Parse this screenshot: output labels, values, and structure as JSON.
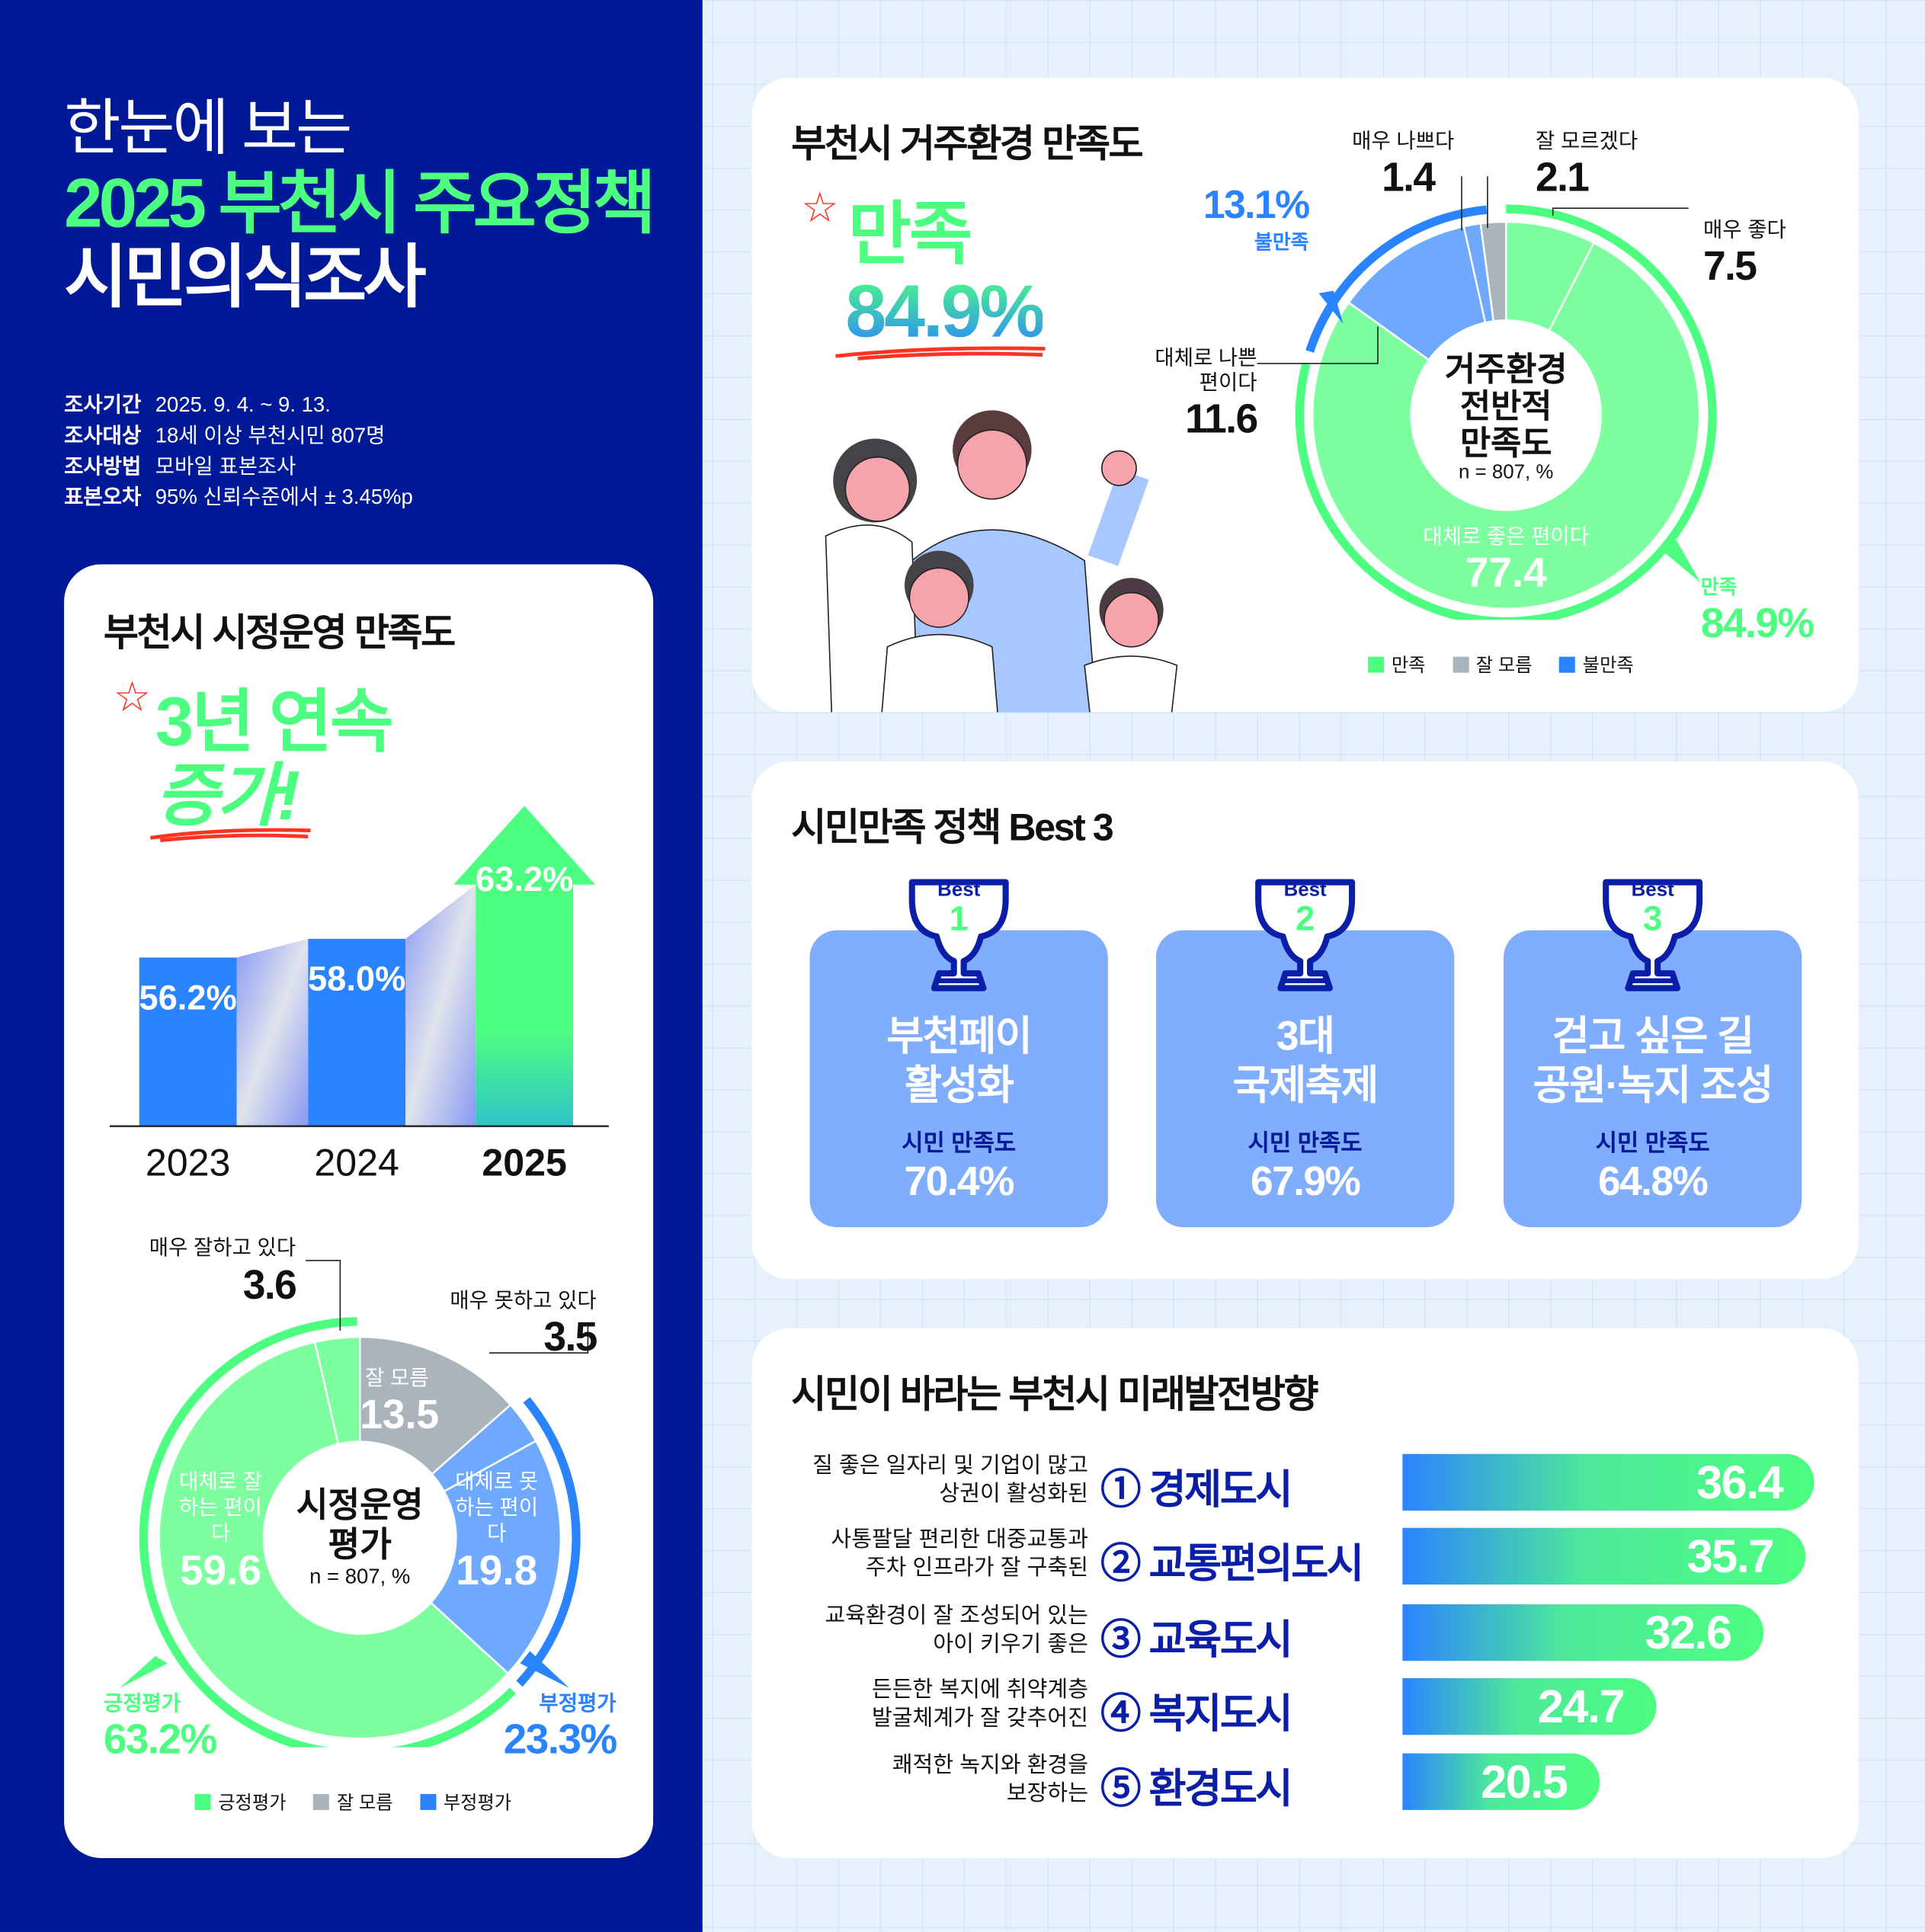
{
  "header": {
    "line1": "한눈에 보는",
    "line2": "2025 부천시 주요정책",
    "line3": "시민의식조사"
  },
  "survey_info": [
    {
      "label": "조사기간",
      "value": "2025. 9. 4. ~ 9. 13."
    },
    {
      "label": "조사대상",
      "value": "18세 이상 부천시민 807명"
    },
    {
      "label": "조사방법",
      "value": "모바일 표본조사"
    },
    {
      "label": "표본오차",
      "value": "95% 신뢰수준에서 ± 3.45%p"
    }
  ],
  "colors": {
    "navy": "#001996",
    "green": "#4dff80",
    "light_green": "#7eff9f",
    "blue": "#2b84ff",
    "light_blue": "#6ea8ff",
    "gray": "#a9b5bb"
  },
  "city_admin": {
    "title": "부천시 시정운영 만족도",
    "headline1": "3년 연속",
    "headline2": "증가!",
    "donut_center": "시정운영",
    "donut_center2": "평가",
    "n_label": "n = 807, %",
    "positive": {
      "label": "긍정평가",
      "value": "63.2%"
    },
    "negative": {
      "label": "부정평가",
      "value": "23.3%"
    },
    "legend": [
      "긍정평가",
      "잘 모름",
      "부정평가"
    ]
  },
  "residential": {
    "title": "부천시 거주환경 만족도",
    "headline1": "만족",
    "headline2": "84.9%",
    "donut_center": [
      "거주환경",
      "전반적",
      "만족도"
    ],
    "n_label": "n = 807, %",
    "satisfied": {
      "label": "만족",
      "value": "84.9%"
    },
    "dissatisfied": {
      "label": "불만족",
      "value": "13.1%"
    },
    "legend": [
      "만족",
      "잘 모름",
      "불만족"
    ]
  },
  "best3": {
    "title": "시민만족 정책 Best 3",
    "items": [
      {
        "badge": "Best",
        "rank": "1",
        "name1": "부천페이",
        "name2": "활성화",
        "sat_label": "시민 만족도",
        "value": "70.4%"
      },
      {
        "badge": "Best",
        "rank": "2",
        "name1": "3대",
        "name2": "국제축제",
        "sat_label": "시민 만족도",
        "value": "67.9%"
      },
      {
        "badge": "Best",
        "rank": "3",
        "name1": "걷고 싶은 길",
        "name2": "공원·녹지 조성",
        "sat_label": "시민 만족도",
        "value": "64.8%"
      }
    ]
  },
  "chart_data": [
    {
      "type": "bar",
      "title": "부천시 시정운영 만족도",
      "categories": [
        "2023",
        "2024",
        "2025"
      ],
      "values": [
        56.2,
        58.0,
        63.2
      ],
      "value_labels": [
        "56.2%",
        "58.0%",
        "63.2%"
      ],
      "unit": "%",
      "ylim": [
        0,
        70
      ]
    },
    {
      "type": "pie",
      "title": "시정운영 평가",
      "slices": [
        {
          "label": "잘 모름",
          "value": 13.5,
          "color": "#a9b5bb"
        },
        {
          "label": "매우 못하고 있다",
          "value": 3.5,
          "color": "#6ea8ff"
        },
        {
          "label": "대체로 못하는 편이다",
          "value": 19.8,
          "color": "#6ea8ff"
        },
        {
          "label": "대체로 잘하는 편이다",
          "value": 59.6,
          "color": "#7eff9f"
        },
        {
          "label": "매우 잘하고 있다",
          "value": 3.6,
          "color": "#7eff9f"
        }
      ]
    },
    {
      "type": "pie",
      "title": "거주환경 전반적 만족도",
      "slices": [
        {
          "label": "매우 좋다",
          "value": 7.5,
          "color": "#7eff9f"
        },
        {
          "label": "대체로 좋은 편이다",
          "value": 77.4,
          "color": "#7eff9f"
        },
        {
          "label": "대체로 나쁜 편이다",
          "value": 11.6,
          "color": "#6ea8ff"
        },
        {
          "label": "매우 나쁘다",
          "value": 1.4,
          "color": "#6ea8ff"
        },
        {
          "label": "잘 모르겠다",
          "value": 2.1,
          "color": "#a9b5bb"
        }
      ]
    },
    {
      "type": "bar",
      "title": "시민이 바라는 부천시 미래발전방향",
      "orientation": "horizontal",
      "categories": [
        "① 경제도시",
        "② 교통편의도시",
        "③ 교육도시",
        "④ 복지도시",
        "⑤ 환경도시"
      ],
      "descriptions": [
        "질 좋은 일자리 및 기업이 많고 상권이 활성화된",
        "사통팔달 편리한 대중교통과 주차 인프라가 잘 구축된",
        "교육환경이 잘 조성되어 있는 아이 키우기 좋은",
        "든든한 복지에 취약계층 발굴체계가 잘 갖추어진",
        "쾌적한 녹지와 환경을 보장하는"
      ],
      "desc_lines": [
        [
          "질 좋은 일자리 및 기업이 많고",
          "상권이 활성화된"
        ],
        [
          "사통팔달 편리한 대중교통과",
          "주차 인프라가 잘 구축된"
        ],
        [
          "교육환경이 잘 조성되어 있는",
          "아이 키우기 좋은"
        ],
        [
          "든든한 복지에 취약계층",
          "발굴체계가 잘 갖추어진"
        ],
        [
          "쾌적한 녹지와 환경을",
          "보장하는"
        ]
      ],
      "values": [
        36.4,
        35.7,
        32.6,
        24.7,
        20.5
      ]
    }
  ]
}
